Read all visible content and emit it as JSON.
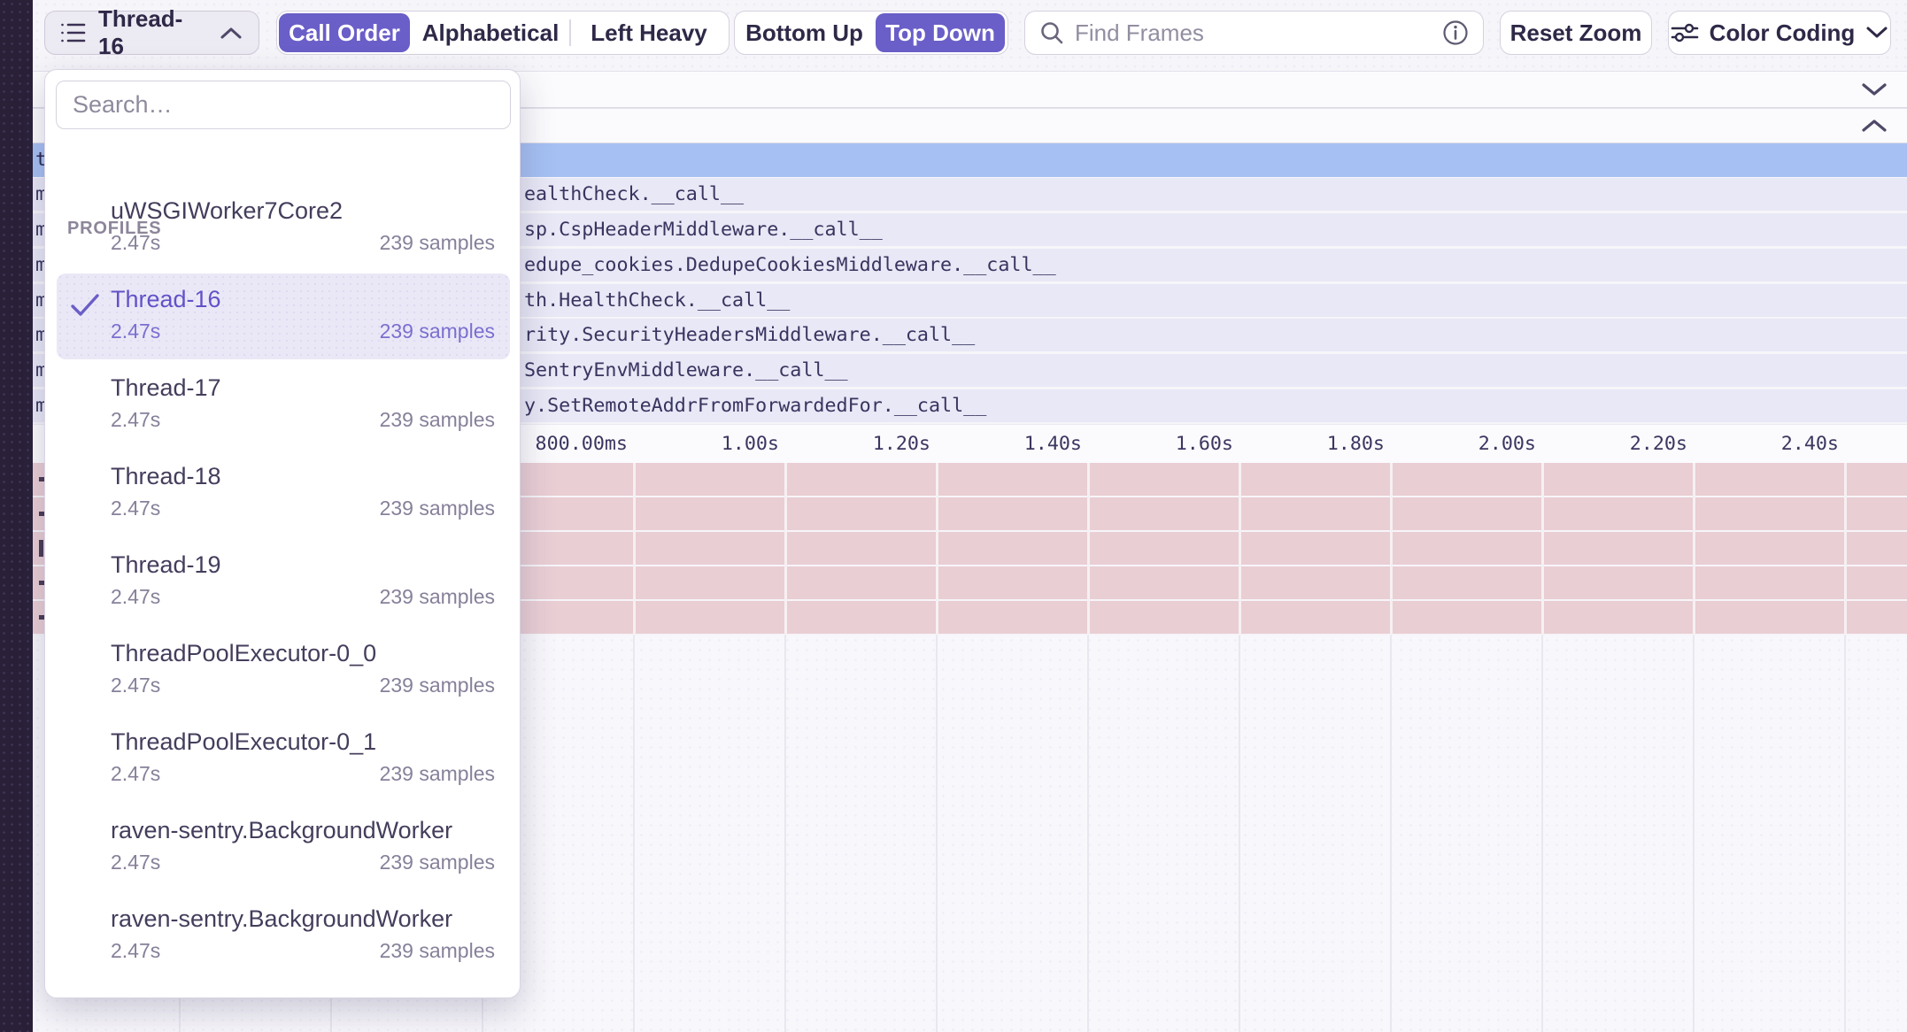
{
  "toolbar": {
    "thread_selector_label": "Thread-16",
    "sort_tabs": {
      "active": "Call Order",
      "options": [
        "Call Order",
        "Alphabetical",
        "Left Heavy"
      ]
    },
    "direction_tabs": {
      "active": "Top Down",
      "options": [
        "Bottom Up",
        "Top Down"
      ]
    },
    "find_frames_placeholder": "Find Frames",
    "reset_zoom_label": "Reset Zoom",
    "color_coding_label": "Color Coding"
  },
  "dropdown": {
    "search_placeholder": "Search…",
    "section_label": "PROFILES",
    "selected_profile": "Thread-16",
    "items": [
      {
        "name": "uWSGIWorker7Core2",
        "duration": "2.47s",
        "samples": "239 samples",
        "selected": false
      },
      {
        "name": "Thread-16",
        "duration": "2.47s",
        "samples": "239 samples",
        "selected": true
      },
      {
        "name": "Thread-17",
        "duration": "2.47s",
        "samples": "239 samples",
        "selected": false
      },
      {
        "name": "Thread-18",
        "duration": "2.47s",
        "samples": "239 samples",
        "selected": false
      },
      {
        "name": "Thread-19",
        "duration": "2.47s",
        "samples": "239 samples",
        "selected": false
      },
      {
        "name": "ThreadPoolExecutor-0_0",
        "duration": "2.47s",
        "samples": "239 samples",
        "selected": false
      },
      {
        "name": "ThreadPoolExecutor-0_1",
        "duration": "2.47s",
        "samples": "239 samples",
        "selected": false
      },
      {
        "name": "raven-sentry.BackgroundWorker",
        "duration": "2.47s",
        "samples": "239 samples",
        "selected": false
      },
      {
        "name": "raven-sentry.BackgroundWorker",
        "duration": "2.47s",
        "samples": "239 samples",
        "selected": false
      }
    ]
  },
  "flame": {
    "selected_frame_sliver": "t",
    "frame_rows": [
      {
        "sliver": "m",
        "label": "ealthCheck.__call__"
      },
      {
        "sliver": "m",
        "label": "sp.CspHeaderMiddleware.__call__"
      },
      {
        "sliver": "m",
        "label": "edupe_cookies.DedupeCookiesMiddleware.__call__"
      },
      {
        "sliver": "m",
        "label": "th.HealthCheck.__call__"
      },
      {
        "sliver": "m",
        "label": "rity.SecurityHeadersMiddleware.__call__"
      },
      {
        "sliver": "m",
        "label": "SentryEnvMiddleware.__call__"
      },
      {
        "sliver": "m",
        "label": "y.SetRemoteAddrFromForwardedFor.__call__"
      }
    ],
    "pink_row_marks": [
      "-",
      "-",
      "|",
      "-",
      "-"
    ],
    "axis": {
      "tick_labels": [
        "800.00ms",
        "1.00s",
        "1.20s",
        "1.40s",
        "1.60s",
        "1.80s",
        "2.00s",
        "2.20s",
        "2.40s"
      ],
      "tick_times_s": [
        0.8,
        1.0,
        1.2,
        1.4,
        1.6,
        1.8,
        2.0,
        2.2,
        2.4
      ],
      "gridline_times_s": [
        0.2,
        0.4,
        0.6,
        0.8,
        1.0,
        1.2,
        1.4,
        1.6,
        1.8,
        2.0,
        2.2,
        2.4
      ]
    }
  },
  "colors": {
    "accent_purple": "#6a5ec8",
    "selected_frame_blue": "#a6c0f3",
    "frame_lavender": "#e8e8f6",
    "frame_pink": "#e9ced4",
    "sidebar_dark": "#2a2139"
  }
}
